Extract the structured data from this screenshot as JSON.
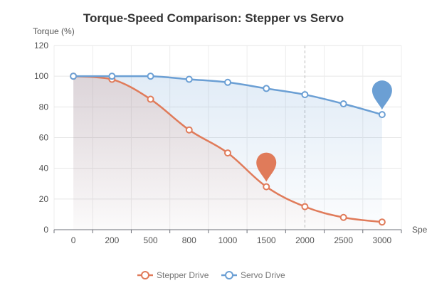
{
  "chart_data": {
    "type": "line",
    "title": "Torque-Speed Comparison: Stepper vs Servo",
    "ylabel": "Torque (%)",
    "xlabel": "Spe",
    "categories": [
      "0",
      "200",
      "500",
      "800",
      "1000",
      "1500",
      "2000",
      "2500",
      "3000"
    ],
    "ylim": [
      0,
      120
    ],
    "yticks": [
      0,
      20,
      40,
      60,
      80,
      100,
      120
    ],
    "grid": true,
    "smooth": true,
    "area_fill": true,
    "legend_position": "bottom",
    "marked_category": "2000",
    "series": [
      {
        "name": "Stepper Drive",
        "color": "#e07b5a",
        "values": [
          100,
          98,
          85,
          65,
          50,
          28,
          15,
          8,
          5
        ],
        "max_marker_category": "1500",
        "max_marker_icon": "map-pin-icon"
      },
      {
        "name": "Servo Drive",
        "color": "#6b9fd4",
        "values": [
          100,
          100,
          100,
          98,
          96,
          92,
          88,
          82,
          75
        ],
        "max_marker_category": "3000",
        "max_marker_icon": "map-pin-icon"
      }
    ]
  }
}
